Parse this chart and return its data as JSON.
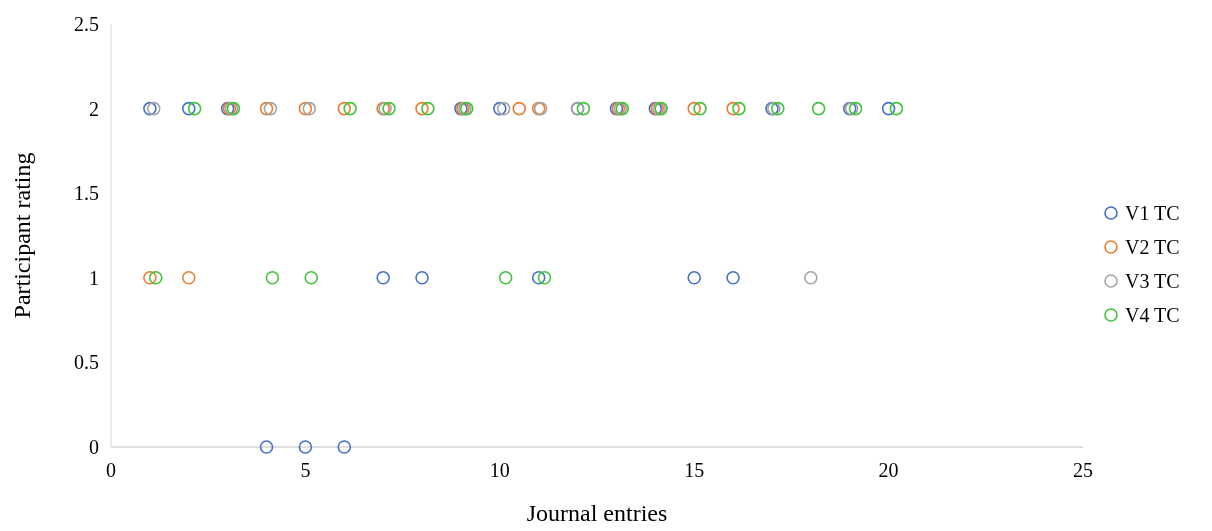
{
  "chart_data": {
    "type": "scatter",
    "xlabel": "Journal entries",
    "ylabel": "Participant rating",
    "xlim": [
      0,
      25
    ],
    "xticks": [
      0,
      5,
      10,
      15,
      20,
      25
    ],
    "ylim": [
      0,
      2.5
    ],
    "yticks": [
      0,
      {
        "value": 0.5,
        "label": "0.5"
      },
      1,
      {
        "value": 1.5,
        "label": "1.5"
      },
      2,
      {
        "value": 2.5,
        "label": "2.5"
      }
    ],
    "legend": "right",
    "marker": "circle",
    "grid": false,
    "series": [
      {
        "name": "V1 TC",
        "color": "#4472c4",
        "x": [
          1,
          2,
          3,
          4,
          5,
          6,
          7,
          8,
          9,
          10,
          11,
          12,
          13,
          14,
          15,
          16,
          17,
          19,
          20
        ],
        "values": [
          2,
          2,
          2,
          0,
          0,
          0,
          1,
          1,
          2,
          2,
          1,
          2,
          2,
          2,
          1,
          1,
          2,
          2,
          2
        ]
      },
      {
        "name": "V2 TC",
        "color": "#ed7d31",
        "x": [
          1,
          2,
          3.05,
          4,
          5,
          6,
          7,
          8,
          9.05,
          10.5,
          11,
          13.05,
          14.05,
          15,
          16
        ],
        "values": [
          1,
          1,
          2,
          2,
          2,
          2,
          2,
          2,
          2,
          2,
          2,
          2,
          2,
          2,
          2
        ]
      },
      {
        "name": "V3 TC",
        "color": "#a5a5a5",
        "x": [
          1.1,
          3.1,
          4.1,
          5.1,
          7.05,
          9.1,
          10.1,
          11.05,
          12,
          13.1,
          14.1,
          17.05,
          18,
          19.05
        ],
        "values": [
          2,
          2,
          2,
          2,
          2,
          2,
          2,
          2,
          2,
          2,
          2,
          2,
          1,
          2
        ]
      },
      {
        "name": "V4 TC",
        "color": "#3fc43a",
        "x": [
          1.15,
          2.15,
          3.15,
          4.15,
          5.15,
          6.15,
          7.15,
          8.15,
          9.15,
          10.15,
          11.15,
          12.15,
          13.15,
          14.15,
          15.15,
          16.15,
          17.15,
          18.2,
          19.15,
          20.2
        ],
        "values": [
          1,
          2,
          2,
          1,
          1,
          2,
          2,
          2,
          2,
          1,
          1,
          2,
          2,
          2,
          2,
          2,
          2,
          2,
          2,
          2
        ]
      }
    ]
  }
}
